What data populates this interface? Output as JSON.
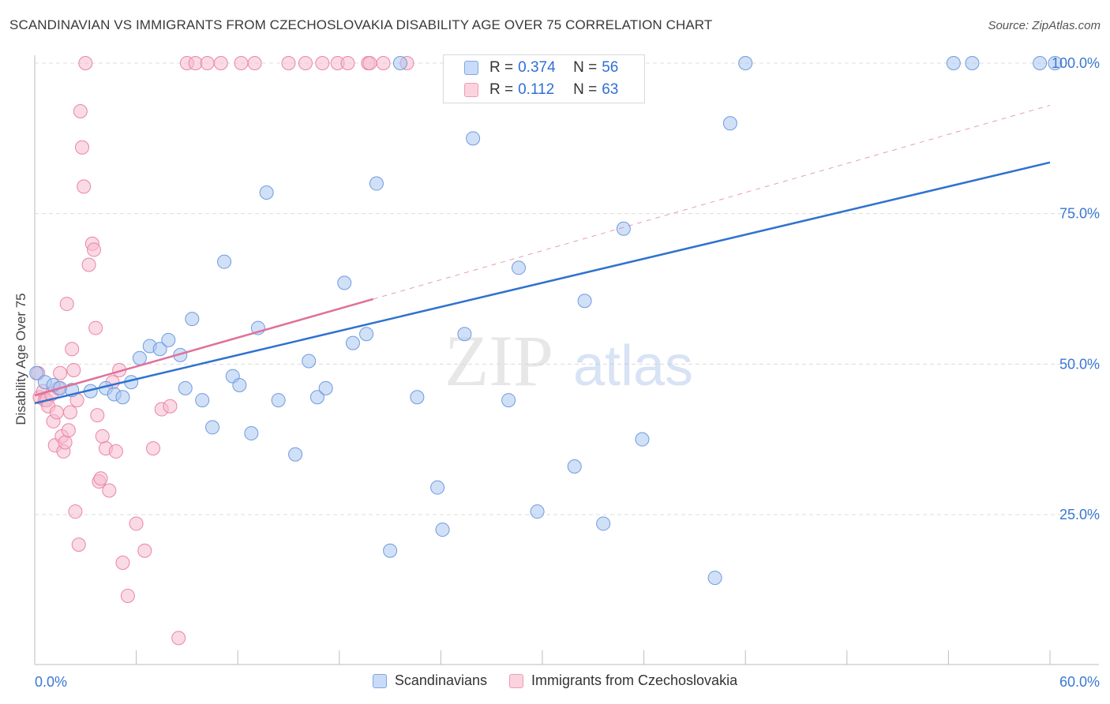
{
  "header": {
    "title": "SCANDINAVIAN VS IMMIGRANTS FROM CZECHOSLOVAKIA DISABILITY AGE OVER 75 CORRELATION CHART",
    "source": "Source: ZipAtlas.com"
  },
  "watermark": {
    "zip": "ZIP",
    "atlas": "atlas"
  },
  "legend_top": [
    {
      "r_key": "R =",
      "r_value": "0.374",
      "n_key": "N =",
      "n_value": "56",
      "color": "#9bbdf0"
    },
    {
      "r_key": "R =",
      "r_value": "0.112",
      "n_key": "N =",
      "n_value": "63",
      "color": "#f6b0c6"
    }
  ],
  "legend_bottom": [
    {
      "label": "Scandinavians",
      "color": "#9bbdf0"
    },
    {
      "label": "Immigrants from Czechoslovakia",
      "color": "#f6b0c6"
    }
  ],
  "chart_data": {
    "type": "scatter",
    "title": "SCANDINAVIAN VS IMMIGRANTS FROM CZECHOSLOVAKIA DISABILITY AGE OVER 75 CORRELATION CHART",
    "xlabel": "",
    "ylabel": "Disability Age Over 75",
    "xlim": [
      0,
      60
    ],
    "ylim": [
      0,
      102
    ],
    "x_tick_labels": [
      "0.0%",
      "60.0%"
    ],
    "y_ticks": [
      25,
      50,
      75,
      100
    ],
    "y_tick_labels": [
      "25.0%",
      "50.0%",
      "75.0%",
      "100.0%"
    ],
    "grid": true,
    "legend_position": "top-center",
    "colors": {
      "blue_fill": "#a9c6f0",
      "blue_stroke": "#6f9be0",
      "blue_line": "#2f72d0",
      "pink_fill": "#f6bccd",
      "pink_stroke": "#ea85a6",
      "pink_line": "#e0709a",
      "tick_label": "#3a78d4",
      "grid": "#dcdcdc"
    },
    "series": [
      {
        "name": "Scandinavians",
        "r": 0.374,
        "n": 56,
        "x": [
          0.1,
          0.6,
          1.1,
          1.5,
          2.2,
          3.3,
          4.2,
          4.7,
          5.2,
          5.7,
          6.2,
          6.8,
          7.4,
          7.9,
          8.6,
          8.9,
          9.3,
          9.9,
          10.5,
          11.2,
          11.7,
          12.1,
          12.8,
          13.7,
          14.4,
          13.2,
          15.4,
          16.2,
          16.7,
          17.2,
          18.3,
          18.8,
          19.6,
          20.2,
          21.0,
          21.6,
          22.6,
          23.8,
          24.1,
          25.4,
          25.9,
          28.0,
          28.6,
          29.7,
          31.9,
          32.5,
          33.6,
          34.8,
          35.9,
          40.2,
          41.1,
          42.0,
          54.3,
          55.4,
          59.4,
          60.3
        ],
        "y": [
          48.5,
          47.0,
          46.5,
          46.0,
          45.7,
          45.5,
          46.0,
          45.0,
          44.5,
          47.0,
          51.0,
          53.0,
          52.5,
          54.0,
          51.5,
          46.0,
          57.5,
          44.0,
          39.5,
          67.0,
          48.0,
          46.5,
          38.5,
          78.5,
          44.0,
          56.0,
          35.0,
          50.5,
          44.5,
          46.0,
          63.5,
          53.5,
          55.0,
          80.0,
          19.0,
          100.0,
          44.5,
          29.5,
          22.5,
          55.0,
          87.5,
          44.0,
          66.0,
          25.5,
          33.0,
          60.5,
          23.5,
          72.5,
          37.5,
          14.5,
          90.0,
          100.0,
          100.0,
          100.0,
          100.0,
          100.0
        ]
      },
      {
        "name": "Immigrants from Czechoslovakia",
        "r": 0.112,
        "n": 63,
        "x": [
          0.2,
          0.3,
          0.5,
          0.6,
          0.7,
          0.8,
          1.0,
          1.1,
          1.2,
          1.3,
          1.4,
          1.5,
          1.6,
          1.7,
          1.8,
          1.9,
          2.0,
          2.1,
          2.2,
          2.3,
          2.4,
          2.5,
          2.6,
          2.7,
          2.8,
          2.9,
          3.0,
          3.2,
          3.4,
          3.5,
          3.6,
          3.7,
          3.8,
          3.9,
          4.0,
          4.2,
          4.4,
          4.6,
          4.8,
          5.0,
          5.2,
          5.5,
          6.0,
          6.5,
          7.0,
          7.5,
          8.0,
          9.0,
          9.5,
          10.2,
          11.0,
          12.2,
          13.0,
          15.0,
          16.0,
          17.0,
          17.9,
          18.5,
          19.7,
          20.6,
          19.8,
          22.0,
          8.5
        ],
        "y": [
          48.5,
          44.5,
          45.5,
          44.0,
          44.0,
          43.0,
          45.0,
          40.5,
          36.5,
          42.0,
          46.0,
          48.5,
          38.0,
          35.5,
          37.0,
          60.0,
          39.0,
          42.0,
          52.5,
          49.0,
          25.5,
          44.0,
          20.0,
          92.0,
          86.0,
          79.5,
          100.0,
          66.5,
          70.0,
          69.0,
          56.0,
          41.5,
          30.5,
          31.0,
          38.0,
          36.0,
          29.0,
          47.0,
          35.5,
          49.0,
          17.0,
          11.5,
          23.5,
          19.0,
          36.0,
          42.5,
          43.0,
          100.0,
          100.0,
          100.0,
          100.0,
          100.0,
          100.0,
          100.0,
          100.0,
          100.0,
          100.0,
          100.0,
          100.0,
          100.0,
          100.0,
          100.0,
          4.5
        ]
      }
    ],
    "trend_lines": [
      {
        "series": "Scandinavians",
        "x": [
          0,
          60
        ],
        "y": [
          43.5,
          83.5
        ],
        "style": "solid"
      },
      {
        "series": "Immigrants from Czechoslovakia",
        "x": [
          0,
          20
        ],
        "y": [
          44.8,
          60.8
        ],
        "style": "solid"
      },
      {
        "series": "Immigrants from Czechoslovakia",
        "x": [
          20,
          60
        ],
        "y": [
          60.8,
          93.0
        ],
        "style": "dashed"
      }
    ]
  }
}
